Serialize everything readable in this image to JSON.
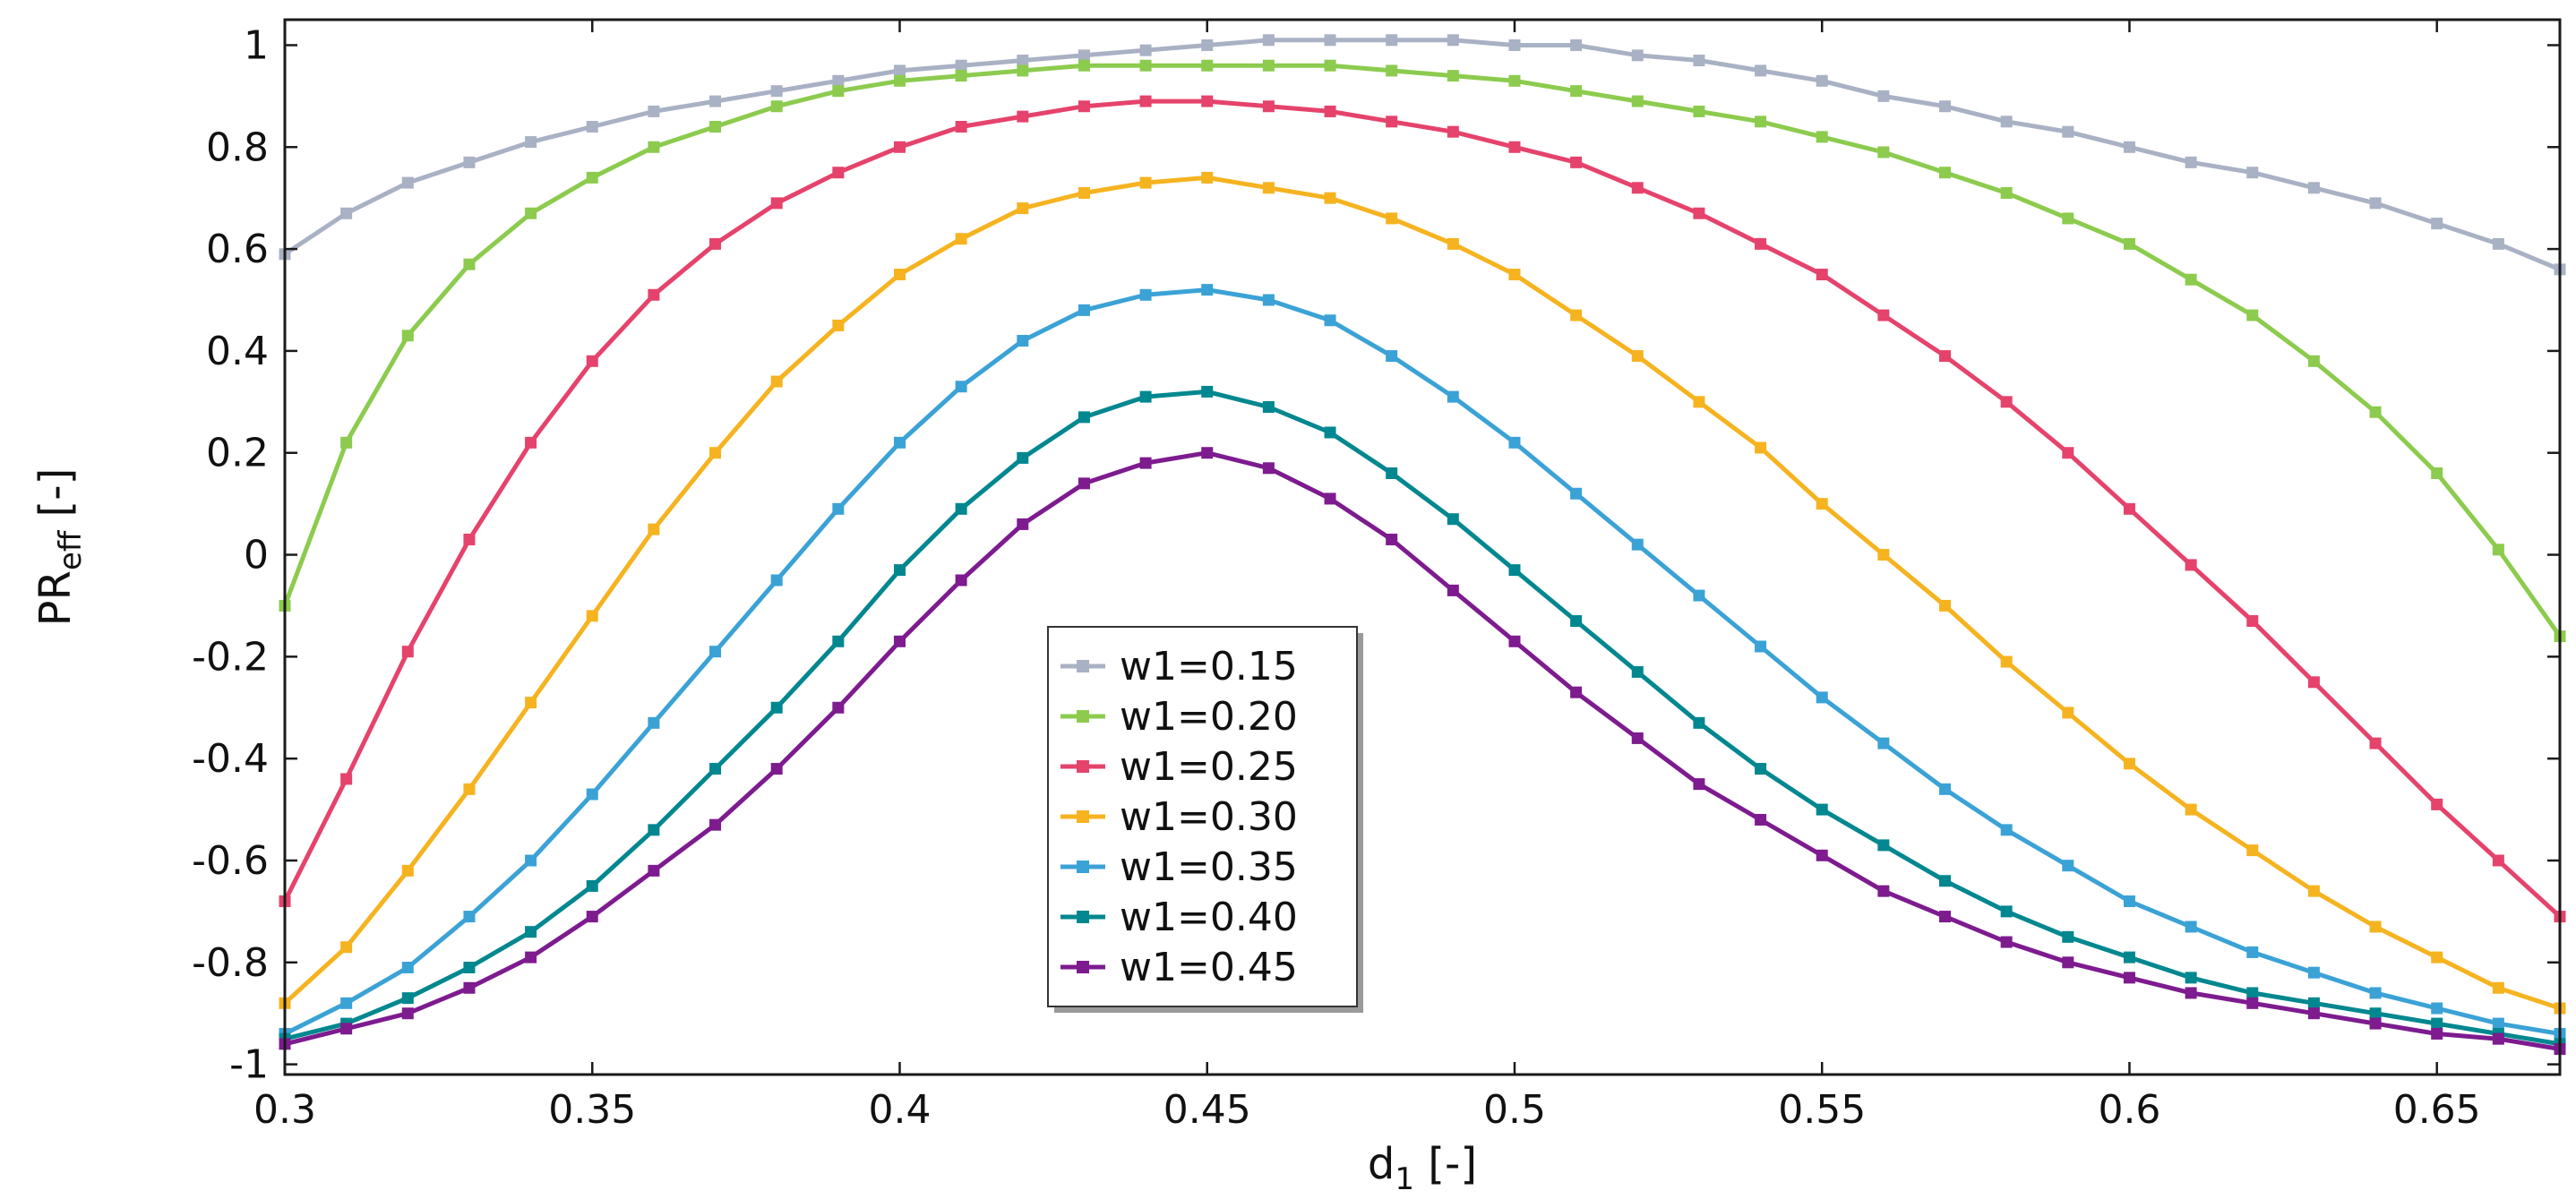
{
  "chart_data": {
    "type": "line",
    "title": "",
    "xlabel": {
      "main": "d",
      "sub": "1",
      "suffix": " [-]"
    },
    "ylabel": {
      "main": "PR",
      "sub": "eff",
      "suffix": " [-]"
    },
    "xlim": [
      0.3,
      0.67
    ],
    "ylim": [
      -1.02,
      1.05
    ],
    "xticks": [
      0.3,
      0.35,
      0.4,
      0.45,
      0.5,
      0.55,
      0.6,
      0.65
    ],
    "xtick_labels": [
      "0.3",
      "0.35",
      "0.4",
      "0.45",
      "0.5",
      "0.55",
      "0.6",
      "0.65"
    ],
    "yticks": [
      -1,
      -0.8,
      -0.6,
      -0.4,
      -0.2,
      0,
      0.2,
      0.4,
      0.6,
      0.8,
      1
    ],
    "ytick_labels": [
      "-1",
      "-0.8",
      "-0.6",
      "-0.4",
      "-0.2",
      "0",
      "0.2",
      "0.4",
      "0.6",
      "0.8",
      "1"
    ],
    "grid": false,
    "legend_position": "center",
    "x": [
      0.3,
      0.31,
      0.32,
      0.33,
      0.34,
      0.35,
      0.36,
      0.37,
      0.38,
      0.39,
      0.4,
      0.41,
      0.42,
      0.43,
      0.44,
      0.45,
      0.46,
      0.47,
      0.48,
      0.49,
      0.5,
      0.51,
      0.52,
      0.53,
      0.54,
      0.55,
      0.56,
      0.57,
      0.58,
      0.59,
      0.6,
      0.61,
      0.62,
      0.63,
      0.64,
      0.65,
      0.66,
      0.67
    ],
    "series": [
      {
        "name": "w1=0.15",
        "color": "#a9b1c4",
        "values": [
          0.59,
          0.67,
          0.73,
          0.77,
          0.81,
          0.84,
          0.87,
          0.89,
          0.91,
          0.93,
          0.95,
          0.96,
          0.97,
          0.98,
          0.99,
          1.0,
          1.01,
          1.01,
          1.01,
          1.01,
          1.0,
          1.0,
          0.98,
          0.97,
          0.95,
          0.93,
          0.9,
          0.88,
          0.85,
          0.83,
          0.8,
          0.77,
          0.75,
          0.72,
          0.69,
          0.65,
          0.61,
          0.56
        ]
      },
      {
        "name": "w1=0.20",
        "color": "#8ccb4e",
        "values": [
          -0.1,
          0.22,
          0.43,
          0.57,
          0.67,
          0.74,
          0.8,
          0.84,
          0.88,
          0.91,
          0.93,
          0.94,
          0.95,
          0.96,
          0.96,
          0.96,
          0.96,
          0.96,
          0.95,
          0.94,
          0.93,
          0.91,
          0.89,
          0.87,
          0.85,
          0.82,
          0.79,
          0.75,
          0.71,
          0.66,
          0.61,
          0.54,
          0.47,
          0.38,
          0.28,
          0.16,
          0.01,
          -0.16
        ]
      },
      {
        "name": "w1=0.25",
        "color": "#e5436c",
        "values": [
          -0.68,
          -0.44,
          -0.19,
          0.03,
          0.22,
          0.38,
          0.51,
          0.61,
          0.69,
          0.75,
          0.8,
          0.84,
          0.86,
          0.88,
          0.89,
          0.89,
          0.88,
          0.87,
          0.85,
          0.83,
          0.8,
          0.77,
          0.72,
          0.67,
          0.61,
          0.55,
          0.47,
          0.39,
          0.3,
          0.2,
          0.09,
          -0.02,
          -0.13,
          -0.25,
          -0.37,
          -0.49,
          -0.6,
          -0.71
        ]
      },
      {
        "name": "w1=0.30",
        "color": "#f6b320",
        "values": [
          -0.88,
          -0.77,
          -0.62,
          -0.46,
          -0.29,
          -0.12,
          0.05,
          0.2,
          0.34,
          0.45,
          0.55,
          0.62,
          0.68,
          0.71,
          0.73,
          0.74,
          0.72,
          0.7,
          0.66,
          0.61,
          0.55,
          0.47,
          0.39,
          0.3,
          0.21,
          0.1,
          0.0,
          -0.1,
          -0.21,
          -0.31,
          -0.41,
          -0.5,
          -0.58,
          -0.66,
          -0.73,
          -0.79,
          -0.85,
          -0.89
        ]
      },
      {
        "name": "w1=0.35",
        "color": "#3ba2d6",
        "values": [
          -0.94,
          -0.88,
          -0.81,
          -0.71,
          -0.6,
          -0.47,
          -0.33,
          -0.19,
          -0.05,
          0.09,
          0.22,
          0.33,
          0.42,
          0.48,
          0.51,
          0.52,
          0.5,
          0.46,
          0.39,
          0.31,
          0.22,
          0.12,
          0.02,
          -0.08,
          -0.18,
          -0.28,
          -0.37,
          -0.46,
          -0.54,
          -0.61,
          -0.68,
          -0.73,
          -0.78,
          -0.82,
          -0.86,
          -0.89,
          -0.92,
          -0.94
        ]
      },
      {
        "name": "w1=0.40",
        "color": "#00878f",
        "values": [
          -0.95,
          -0.92,
          -0.87,
          -0.81,
          -0.74,
          -0.65,
          -0.54,
          -0.42,
          -0.3,
          -0.17,
          -0.03,
          0.09,
          0.19,
          0.27,
          0.31,
          0.32,
          0.29,
          0.24,
          0.16,
          0.07,
          -0.03,
          -0.13,
          -0.23,
          -0.33,
          -0.42,
          -0.5,
          -0.57,
          -0.64,
          -0.7,
          -0.75,
          -0.79,
          -0.83,
          -0.86,
          -0.88,
          -0.9,
          -0.92,
          -0.94,
          -0.96
        ]
      },
      {
        "name": "w1=0.45",
        "color": "#7d1b8f",
        "values": [
          -0.96,
          -0.93,
          -0.9,
          -0.85,
          -0.79,
          -0.71,
          -0.62,
          -0.53,
          -0.42,
          -0.3,
          -0.17,
          -0.05,
          0.06,
          0.14,
          0.18,
          0.2,
          0.17,
          0.11,
          0.03,
          -0.07,
          -0.17,
          -0.27,
          -0.36,
          -0.45,
          -0.52,
          -0.59,
          -0.66,
          -0.71,
          -0.76,
          -0.8,
          -0.83,
          -0.86,
          -0.88,
          -0.9,
          -0.92,
          -0.94,
          -0.95,
          -0.97
        ]
      }
    ]
  }
}
